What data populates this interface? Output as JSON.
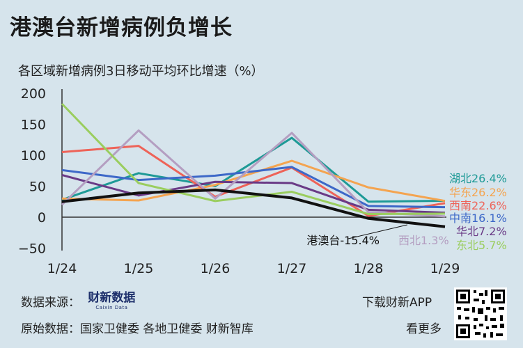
{
  "header": {
    "title": "港澳台新增病例负增长",
    "subtitle": "各区域新增病例3日移动平均环比增速（%）"
  },
  "chart_data": {
    "type": "line",
    "x": [
      "1/24",
      "1/25",
      "1/26",
      "1/27",
      "1/28",
      "1/29"
    ],
    "yticks": [
      200,
      150,
      100,
      50,
      0,
      -50
    ],
    "ylim": [
      -55,
      200
    ],
    "series": [
      {
        "name": "湖北",
        "end_label": "26.4%",
        "color": "#1e9a96",
        "values": [
          28,
          71,
          50,
          128,
          25,
          26.4
        ]
      },
      {
        "name": "华东",
        "end_label": "26.2%",
        "color": "#f4a450",
        "values": [
          30,
          27,
          52,
          91,
          48,
          26.2
        ]
      },
      {
        "name": "西南",
        "end_label": "22.6%",
        "color": "#ee6358",
        "values": [
          105,
          115,
          33,
          80,
          2,
          22.6
        ]
      },
      {
        "name": "中南",
        "end_label": "16.1%",
        "color": "#3d68c8",
        "values": [
          76,
          60,
          67,
          81,
          18,
          16.1
        ]
      },
      {
        "name": "华北",
        "end_label": "7.2%",
        "color": "#6a3a86",
        "values": [
          68,
          35,
          57,
          55,
          12,
          7.2
        ]
      },
      {
        "name": "西北",
        "end_label": "1.3%",
        "color": "#b49ec1",
        "values": [
          20,
          140,
          30,
          136,
          8,
          1.3
        ]
      },
      {
        "name": "东北",
        "end_label": "5.7%",
        "color": "#9acd5e",
        "values": [
          183,
          55,
          26,
          41,
          5,
          5.7
        ]
      },
      {
        "name": "港澳台",
        "end_label": "-15.4%",
        "color": "#111111",
        "values": [
          25,
          39,
          44,
          31,
          -2,
          -15.4
        ]
      }
    ]
  },
  "footer": {
    "source_label": "数据来源：",
    "logo_text": "财新数据",
    "logo_sub": "Caixin Data",
    "origin_label": "原始数据：国家卫健委  各地卫健委  财新智库",
    "download_label": "下载财新APP",
    "more_label": "看更多"
  }
}
